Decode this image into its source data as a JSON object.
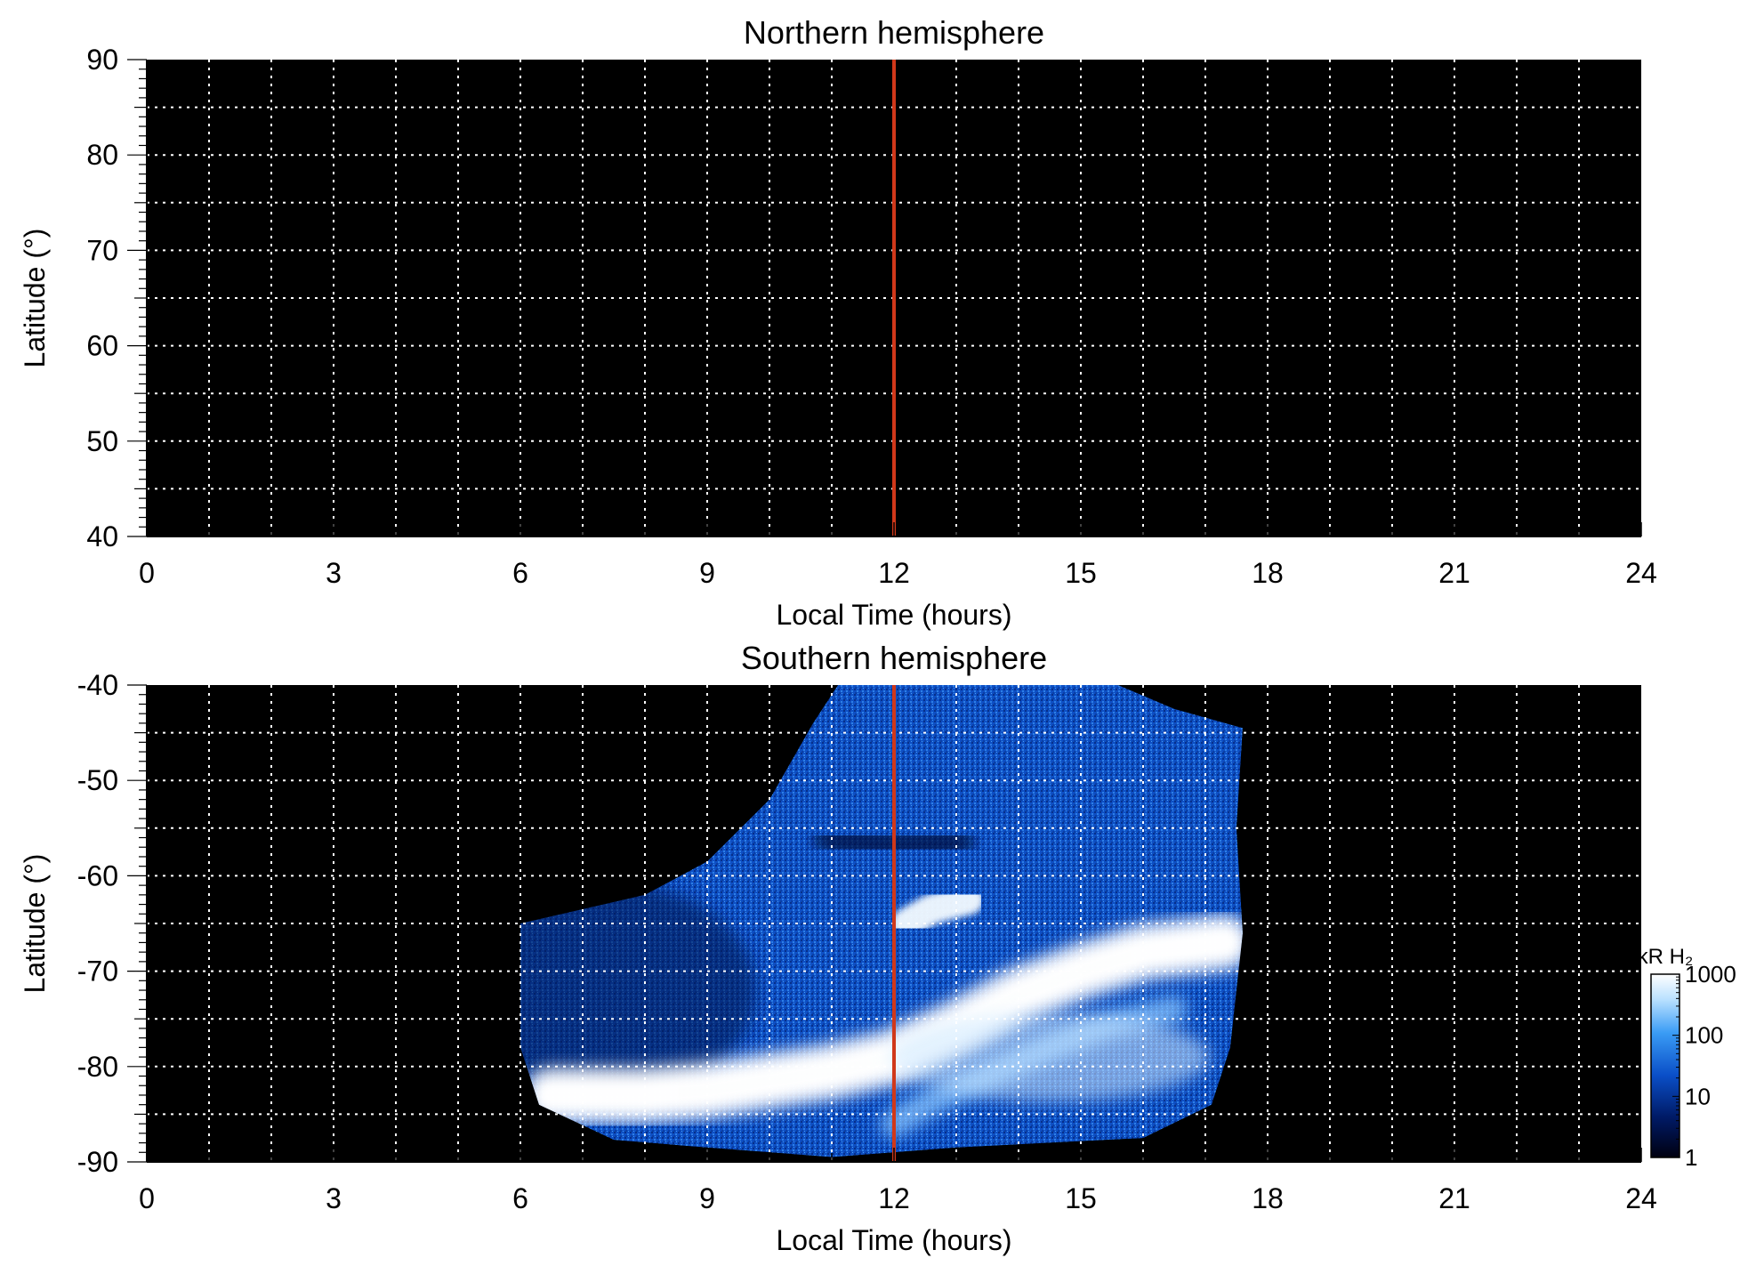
{
  "colors": {
    "background": "#000000",
    "grid": "#ffffff",
    "marker": "#d0381a",
    "emission_low": "#000020",
    "emission_mid": "#0a5fd6",
    "emission_high": "#ffffff"
  },
  "chart_data": [
    {
      "type": "heatmap",
      "title": "Northern hemisphere",
      "xlabel": "Local Time (hours)",
      "ylabel": "Latitude (°)",
      "xlim": [
        0,
        24
      ],
      "ylim": [
        40,
        90
      ],
      "xticks": [
        "0",
        "3",
        "6",
        "9",
        "12",
        "15",
        "18",
        "21",
        "24"
      ],
      "yticks": [
        "40",
        "50",
        "60",
        "70",
        "80",
        "90"
      ],
      "x_minor_step": 0.5,
      "y_minor_step": 1,
      "grid": true,
      "grid_x_step": 1,
      "grid_y_step": 5,
      "marker_line_x": 12,
      "coverage": "none"
    },
    {
      "type": "heatmap",
      "title": "Southern hemisphere",
      "xlabel": "Local Time (hours)",
      "ylabel": "Latitude (°)",
      "xlim": [
        0,
        24
      ],
      "ylim": [
        -90,
        -40
      ],
      "xticks": [
        "0",
        "3",
        "6",
        "9",
        "12",
        "15",
        "18",
        "21",
        "24"
      ],
      "yticks": [
        "-40",
        "-50",
        "-60",
        "-70",
        "-80",
        "-90"
      ],
      "x_minor_step": 0.5,
      "y_minor_step": 1,
      "grid": true,
      "grid_x_step": 1,
      "grid_y_step": 5,
      "marker_line_x": 12,
      "coverage_boundary": [
        [
          6,
          -65
        ],
        [
          7,
          -63.5
        ],
        [
          8,
          -62
        ],
        [
          9,
          -58.5
        ],
        [
          10,
          -52
        ],
        [
          10.7,
          -44
        ],
        [
          11.1,
          -40
        ],
        [
          15.6,
          -40
        ],
        [
          16.5,
          -42.5
        ],
        [
          17.6,
          -44.5
        ],
        [
          17.5,
          -55
        ],
        [
          17.6,
          -66
        ],
        [
          17.4,
          -78
        ],
        [
          17.1,
          -84
        ],
        [
          16,
          -87.5
        ],
        [
          13,
          -88.5
        ],
        [
          11,
          -89.5
        ],
        [
          9,
          -88.5
        ],
        [
          7.5,
          -87.7
        ],
        [
          6.3,
          -84
        ],
        [
          6,
          -78
        ]
      ],
      "auroral_features": [
        {
          "name": "main auroral oval",
          "points": [
            [
              6.5,
              -83
            ],
            [
              8,
              -83
            ],
            [
              9,
              -82.5
            ],
            [
              10,
              -81.5
            ],
            [
              11,
              -80.5
            ],
            [
              12,
              -79
            ],
            [
              13,
              -76
            ],
            [
              14,
              -72.5
            ],
            [
              15,
              -70
            ],
            [
              16,
              -68
            ],
            [
              17.3,
              -67
            ]
          ],
          "intensity": 1000
        },
        {
          "name": "dayside spot",
          "points": [
            [
              12.2,
              -65
            ],
            [
              12.6,
              -63.5
            ],
            [
              13.2,
              -62.5
            ]
          ],
          "intensity": 800
        },
        {
          "name": "polar arc",
          "points": [
            [
              12,
              -86
            ],
            [
              12.5,
              -84
            ],
            [
              13.5,
              -81
            ],
            [
              14.5,
              -78
            ],
            [
              15.5,
              -75.5
            ],
            [
              16.5,
              -74
            ]
          ],
          "intensity": 400
        },
        {
          "name": "dark patch",
          "points": [
            [
              11,
              -56
            ],
            [
              12,
              -57
            ],
            [
              13,
              -56.5
            ]
          ],
          "intensity": 5
        }
      ],
      "background_intensity": 50,
      "colorbar": {
        "label": "kR H₂",
        "scale": "log",
        "ticks": [
          "1000",
          "100",
          "10",
          "1"
        ],
        "range": [
          1,
          1000
        ]
      }
    }
  ]
}
